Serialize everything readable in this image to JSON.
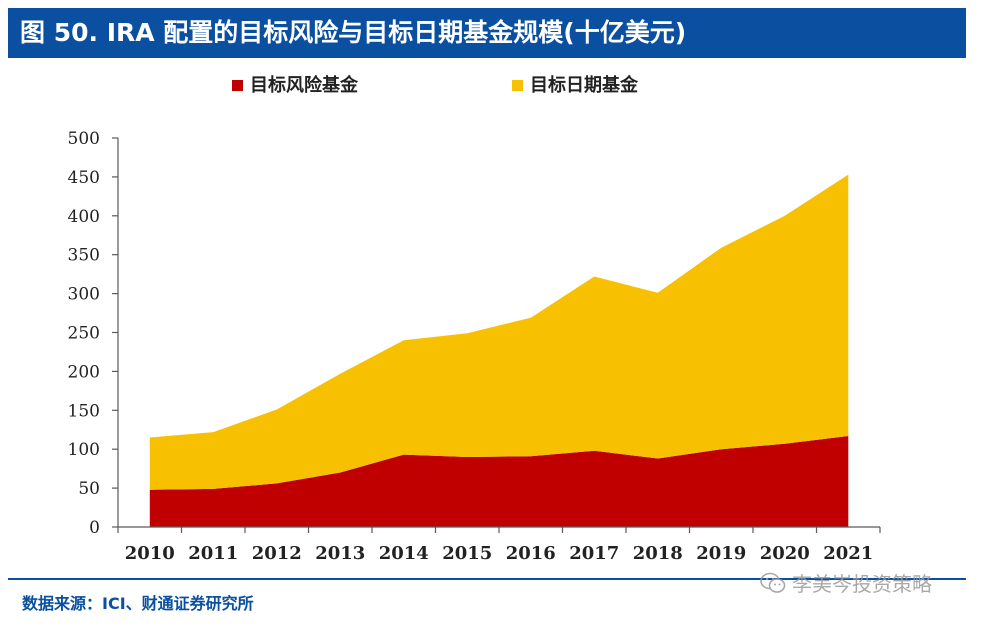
{
  "header": {
    "title": "图 50. IRA 配置的目标风险与目标日期基金规模(十亿美元)"
  },
  "footer": {
    "source": "数据来源：ICI、财通证券研究所",
    "watermark": "李美岑投资策略",
    "watermark_icon": "wechat-icon"
  },
  "colors": {
    "title_bg": "#0a4fa0",
    "risk": "#c00000",
    "date": "#f7c000",
    "axis": "#595959"
  },
  "chart_data": {
    "type": "area",
    "stacked": true,
    "title": "",
    "xlabel": "",
    "ylabel": "",
    "categories": [
      "2010",
      "2011",
      "2012",
      "2013",
      "2014",
      "2015",
      "2016",
      "2017",
      "2018",
      "2019",
      "2020",
      "2021"
    ],
    "series": [
      {
        "name": "目标风险基金",
        "color": "#c00000",
        "values": [
          48,
          49,
          56,
          70,
          93,
          90,
          91,
          98,
          88,
          100,
          107,
          117
        ]
      },
      {
        "name": "目标日期基金",
        "color": "#f7c000",
        "values": [
          67,
          73,
          95,
          127,
          147,
          159,
          178,
          224,
          213,
          259,
          293,
          336
        ]
      }
    ],
    "ylim": [
      0,
      500
    ],
    "yticks": [
      0,
      50,
      100,
      150,
      200,
      250,
      300,
      350,
      400,
      450,
      500
    ],
    "grid": false,
    "legend_position": "top-left"
  }
}
